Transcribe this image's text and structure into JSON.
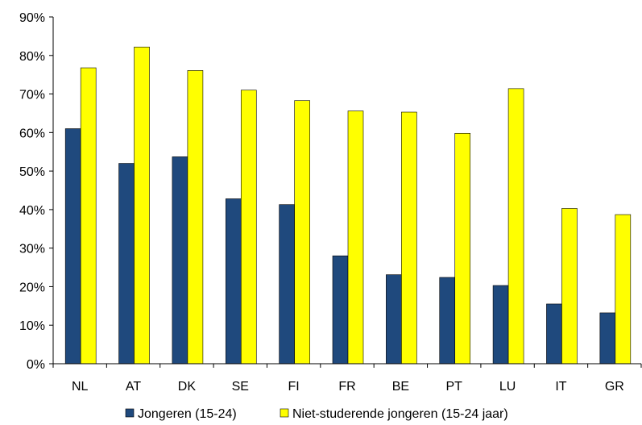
{
  "chart_data": {
    "type": "bar",
    "categories": [
      "NL",
      "AT",
      "DK",
      "SE",
      "FI",
      "FR",
      "BE",
      "PT",
      "LU",
      "IT",
      "GR"
    ],
    "series": [
      {
        "name": "Jongeren (15-24)",
        "color": "#1f497d",
        "values": [
          61.0,
          52.0,
          53.7,
          42.8,
          41.3,
          28.0,
          23.1,
          22.4,
          20.3,
          15.5,
          13.2
        ]
      },
      {
        "name": "Niet-studerende jongeren (15-24 jaar)",
        "color": "#ffff00",
        "values": [
          76.8,
          82.2,
          76.1,
          71.0,
          68.3,
          65.6,
          65.3,
          59.8,
          71.4,
          40.3,
          38.7
        ]
      }
    ],
    "yticks": [
      "0%",
      "10%",
      "20%",
      "30%",
      "40%",
      "50%",
      "60%",
      "70%",
      "80%",
      "90%"
    ],
    "ylim": [
      0,
      90
    ],
    "title": "",
    "xlabel": "",
    "ylabel": "",
    "grid": false,
    "legend_position": "bottom"
  }
}
